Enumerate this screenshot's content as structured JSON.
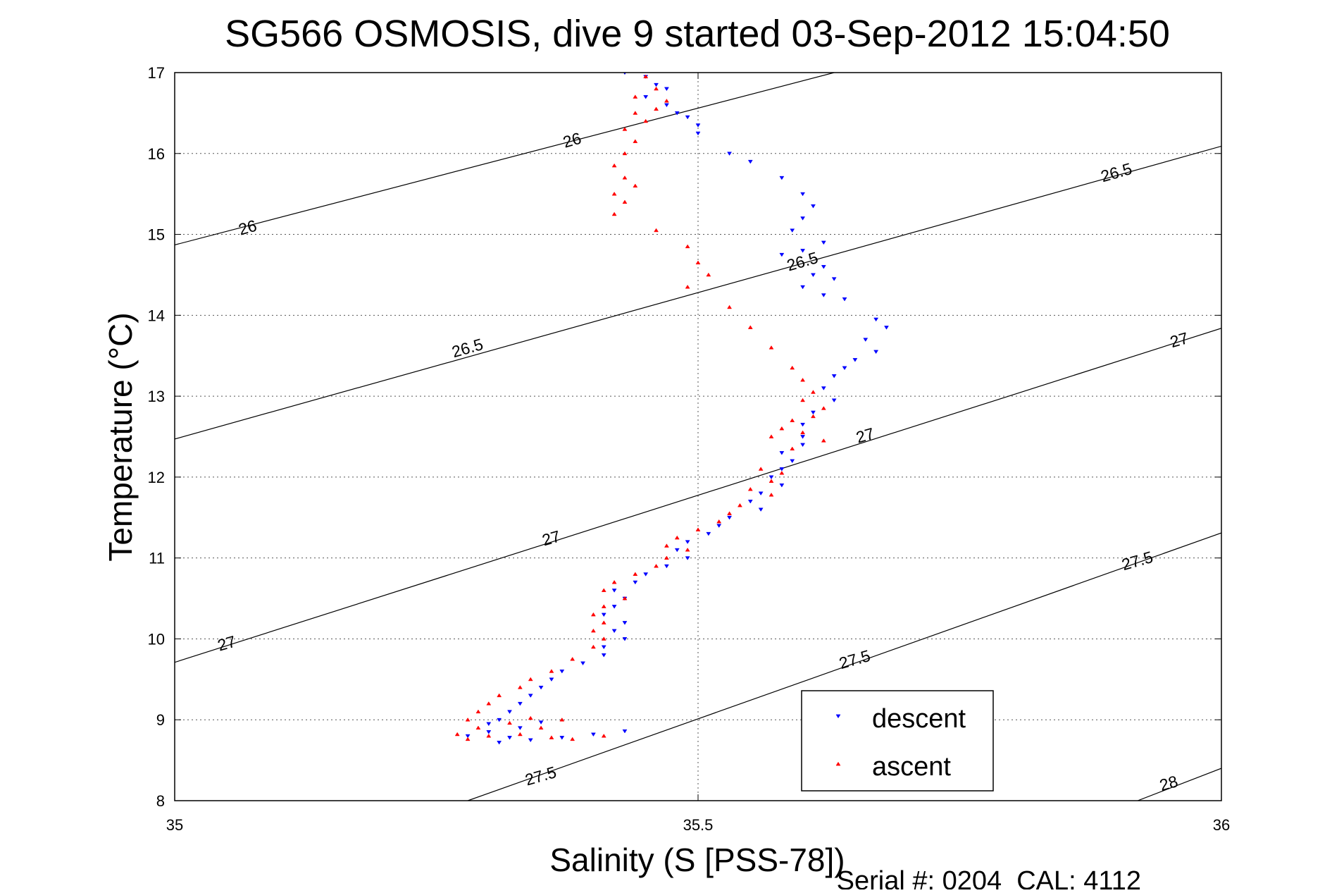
{
  "chart_data": {
    "type": "scatter",
    "title": "SG566 OSMOSIS, dive 9 started 03-Sep-2012 15:04:50",
    "xlabel": "Salinity (S [PSS-78])",
    "ylabel": "Temperature (°C)",
    "xlim": [
      35,
      36
    ],
    "ylim": [
      8,
      17
    ],
    "x_ticks": [
      "35",
      "35.5",
      "36"
    ],
    "y_ticks": [
      "8",
      "9",
      "10",
      "11",
      "12",
      "13",
      "14",
      "15",
      "16",
      "17"
    ],
    "grid": true,
    "legend_position": "bottom-right",
    "footer": "Serial #: 0204  CAL: 4112",
    "density_contours": [
      {
        "label": "26",
        "points": [
          [
            35,
            14.87
          ],
          [
            35.63,
            17
          ]
        ]
      },
      {
        "label": "26.5",
        "points": [
          [
            35,
            12.47
          ],
          [
            36,
            16.09
          ]
        ]
      },
      {
        "label": "27",
        "points": [
          [
            35,
            9.71
          ],
          [
            36,
            13.84
          ]
        ]
      },
      {
        "label": "27.5",
        "points": [
          [
            35.28,
            8
          ],
          [
            36,
            11.31
          ]
        ]
      },
      {
        "label": "28",
        "points": [
          [
            35.92,
            8
          ],
          [
            36,
            8.4
          ]
        ]
      }
    ],
    "contour_labels": [
      {
        "text": "26",
        "x": 35.07,
        "y": 15.07,
        "angle": -16
      },
      {
        "text": "26",
        "x": 35.38,
        "y": 16.15,
        "angle": -16
      },
      {
        "text": "26.5",
        "x": 35.28,
        "y": 13.58,
        "angle": -16
      },
      {
        "text": "26.5",
        "x": 35.6,
        "y": 14.65,
        "angle": -16
      },
      {
        "text": "26.5",
        "x": 35.9,
        "y": 15.75,
        "angle": -16
      },
      {
        "text": "27",
        "x": 35.05,
        "y": 9.93,
        "angle": -16
      },
      {
        "text": "27",
        "x": 35.36,
        "y": 11.23,
        "angle": -16
      },
      {
        "text": "27",
        "x": 35.66,
        "y": 12.5,
        "angle": -16
      },
      {
        "text": "27",
        "x": 35.96,
        "y": 13.68,
        "angle": -16
      },
      {
        "text": "27.5",
        "x": 35.35,
        "y": 8.29,
        "angle": -16
      },
      {
        "text": "27.5",
        "x": 35.65,
        "y": 9.73,
        "angle": -16
      },
      {
        "text": "27.5",
        "x": 35.92,
        "y": 10.95,
        "angle": -16
      },
      {
        "text": "28",
        "x": 35.95,
        "y": 8.2,
        "angle": -16
      }
    ],
    "series": [
      {
        "name": "descent",
        "color": "#0000ff",
        "marker": "triangle-down",
        "points": [
          [
            35.43,
            17.0
          ],
          [
            35.45,
            16.95
          ],
          [
            35.46,
            16.85
          ],
          [
            35.47,
            16.8
          ],
          [
            35.45,
            16.7
          ],
          [
            35.47,
            16.6
          ],
          [
            35.48,
            16.5
          ],
          [
            35.49,
            16.45
          ],
          [
            35.5,
            16.35
          ],
          [
            35.5,
            16.25
          ],
          [
            35.53,
            16.0
          ],
          [
            35.55,
            15.9
          ],
          [
            35.58,
            15.7
          ],
          [
            35.6,
            15.5
          ],
          [
            35.61,
            15.35
          ],
          [
            35.6,
            15.2
          ],
          [
            35.59,
            15.05
          ],
          [
            35.62,
            14.9
          ],
          [
            35.6,
            14.8
          ],
          [
            35.58,
            14.75
          ],
          [
            35.62,
            14.6
          ],
          [
            35.61,
            14.5
          ],
          [
            35.63,
            14.45
          ],
          [
            35.6,
            14.35
          ],
          [
            35.62,
            14.25
          ],
          [
            35.64,
            14.2
          ],
          [
            35.67,
            13.95
          ],
          [
            35.68,
            13.85
          ],
          [
            35.66,
            13.7
          ],
          [
            35.67,
            13.55
          ],
          [
            35.65,
            13.45
          ],
          [
            35.64,
            13.35
          ],
          [
            35.63,
            13.25
          ],
          [
            35.62,
            13.1
          ],
          [
            35.63,
            12.95
          ],
          [
            35.61,
            12.8
          ],
          [
            35.6,
            12.65
          ],
          [
            35.6,
            12.5
          ],
          [
            35.6,
            12.4
          ],
          [
            35.58,
            12.3
          ],
          [
            35.59,
            12.2
          ],
          [
            35.58,
            12.1
          ],
          [
            35.57,
            12.0
          ],
          [
            35.58,
            11.9
          ],
          [
            35.56,
            11.8
          ],
          [
            35.55,
            11.7
          ],
          [
            35.56,
            11.6
          ],
          [
            35.53,
            11.5
          ],
          [
            35.52,
            11.4
          ],
          [
            35.51,
            11.3
          ],
          [
            35.49,
            11.2
          ],
          [
            35.48,
            11.1
          ],
          [
            35.49,
            11.0
          ],
          [
            35.47,
            10.9
          ],
          [
            35.45,
            10.8
          ],
          [
            35.44,
            10.7
          ],
          [
            35.42,
            10.6
          ],
          [
            35.43,
            10.5
          ],
          [
            35.42,
            10.4
          ],
          [
            35.41,
            10.3
          ],
          [
            35.43,
            10.2
          ],
          [
            35.42,
            10.1
          ],
          [
            35.43,
            10.0
          ],
          [
            35.41,
            9.9
          ],
          [
            35.41,
            9.8
          ],
          [
            35.39,
            9.7
          ],
          [
            35.37,
            9.6
          ],
          [
            35.36,
            9.5
          ],
          [
            35.35,
            9.4
          ],
          [
            35.34,
            9.3
          ],
          [
            35.33,
            9.2
          ],
          [
            35.32,
            9.1
          ],
          [
            35.31,
            9.0
          ],
          [
            35.35,
            8.97
          ],
          [
            35.33,
            8.9
          ],
          [
            35.3,
            8.85
          ],
          [
            35.28,
            8.8
          ],
          [
            35.31,
            8.72
          ],
          [
            35.34,
            8.75
          ],
          [
            35.37,
            8.78
          ],
          [
            35.4,
            8.82
          ],
          [
            35.43,
            8.86
          ],
          [
            35.3,
            8.95
          ],
          [
            35.32,
            8.78
          ]
        ]
      },
      {
        "name": "ascent",
        "color": "#ff0000",
        "marker": "triangle-up",
        "points": [
          [
            35.45,
            16.95
          ],
          [
            35.46,
            16.8
          ],
          [
            35.44,
            16.7
          ],
          [
            35.47,
            16.65
          ],
          [
            35.46,
            16.55
          ],
          [
            35.44,
            16.5
          ],
          [
            35.45,
            16.4
          ],
          [
            35.43,
            16.3
          ],
          [
            35.44,
            16.15
          ],
          [
            35.43,
            16.0
          ],
          [
            35.42,
            15.85
          ],
          [
            35.43,
            15.7
          ],
          [
            35.44,
            15.6
          ],
          [
            35.42,
            15.5
          ],
          [
            35.43,
            15.4
          ],
          [
            35.42,
            15.25
          ],
          [
            35.46,
            15.05
          ],
          [
            35.49,
            14.85
          ],
          [
            35.5,
            14.65
          ],
          [
            35.51,
            14.5
          ],
          [
            35.49,
            14.35
          ],
          [
            35.53,
            14.1
          ],
          [
            35.55,
            13.85
          ],
          [
            35.57,
            13.6
          ],
          [
            35.59,
            13.35
          ],
          [
            35.6,
            13.2
          ],
          [
            35.61,
            13.05
          ],
          [
            35.6,
            12.95
          ],
          [
            35.62,
            12.85
          ],
          [
            35.61,
            12.75
          ],
          [
            35.59,
            12.7
          ],
          [
            35.58,
            12.6
          ],
          [
            35.6,
            12.55
          ],
          [
            35.62,
            12.45
          ],
          [
            35.57,
            12.5
          ],
          [
            35.59,
            12.35
          ],
          [
            35.56,
            12.1
          ],
          [
            35.58,
            12.05
          ],
          [
            35.57,
            11.95
          ],
          [
            35.55,
            11.85
          ],
          [
            35.57,
            11.78
          ],
          [
            35.54,
            11.65
          ],
          [
            35.53,
            11.55
          ],
          [
            35.52,
            11.45
          ],
          [
            35.5,
            11.35
          ],
          [
            35.48,
            11.25
          ],
          [
            35.47,
            11.15
          ],
          [
            35.49,
            11.1
          ],
          [
            35.47,
            11.0
          ],
          [
            35.46,
            10.9
          ],
          [
            35.44,
            10.8
          ],
          [
            35.42,
            10.7
          ],
          [
            35.41,
            10.6
          ],
          [
            35.43,
            10.5
          ],
          [
            35.41,
            10.4
          ],
          [
            35.4,
            10.3
          ],
          [
            35.41,
            10.2
          ],
          [
            35.4,
            10.1
          ],
          [
            35.41,
            10.0
          ],
          [
            35.4,
            9.9
          ],
          [
            35.38,
            9.75
          ],
          [
            35.36,
            9.6
          ],
          [
            35.34,
            9.5
          ],
          [
            35.33,
            9.4
          ],
          [
            35.31,
            9.3
          ],
          [
            35.3,
            9.2
          ],
          [
            35.29,
            9.1
          ],
          [
            35.28,
            9.0
          ],
          [
            35.29,
            8.9
          ],
          [
            35.27,
            8.82
          ],
          [
            35.28,
            8.76
          ],
          [
            35.3,
            8.8
          ],
          [
            35.33,
            8.82
          ],
          [
            35.35,
            8.9
          ],
          [
            35.36,
            8.78
          ],
          [
            35.37,
            9.0
          ],
          [
            35.34,
            9.02
          ],
          [
            35.32,
            8.96
          ],
          [
            35.38,
            8.76
          ],
          [
            35.41,
            8.8
          ]
        ]
      }
    ]
  }
}
